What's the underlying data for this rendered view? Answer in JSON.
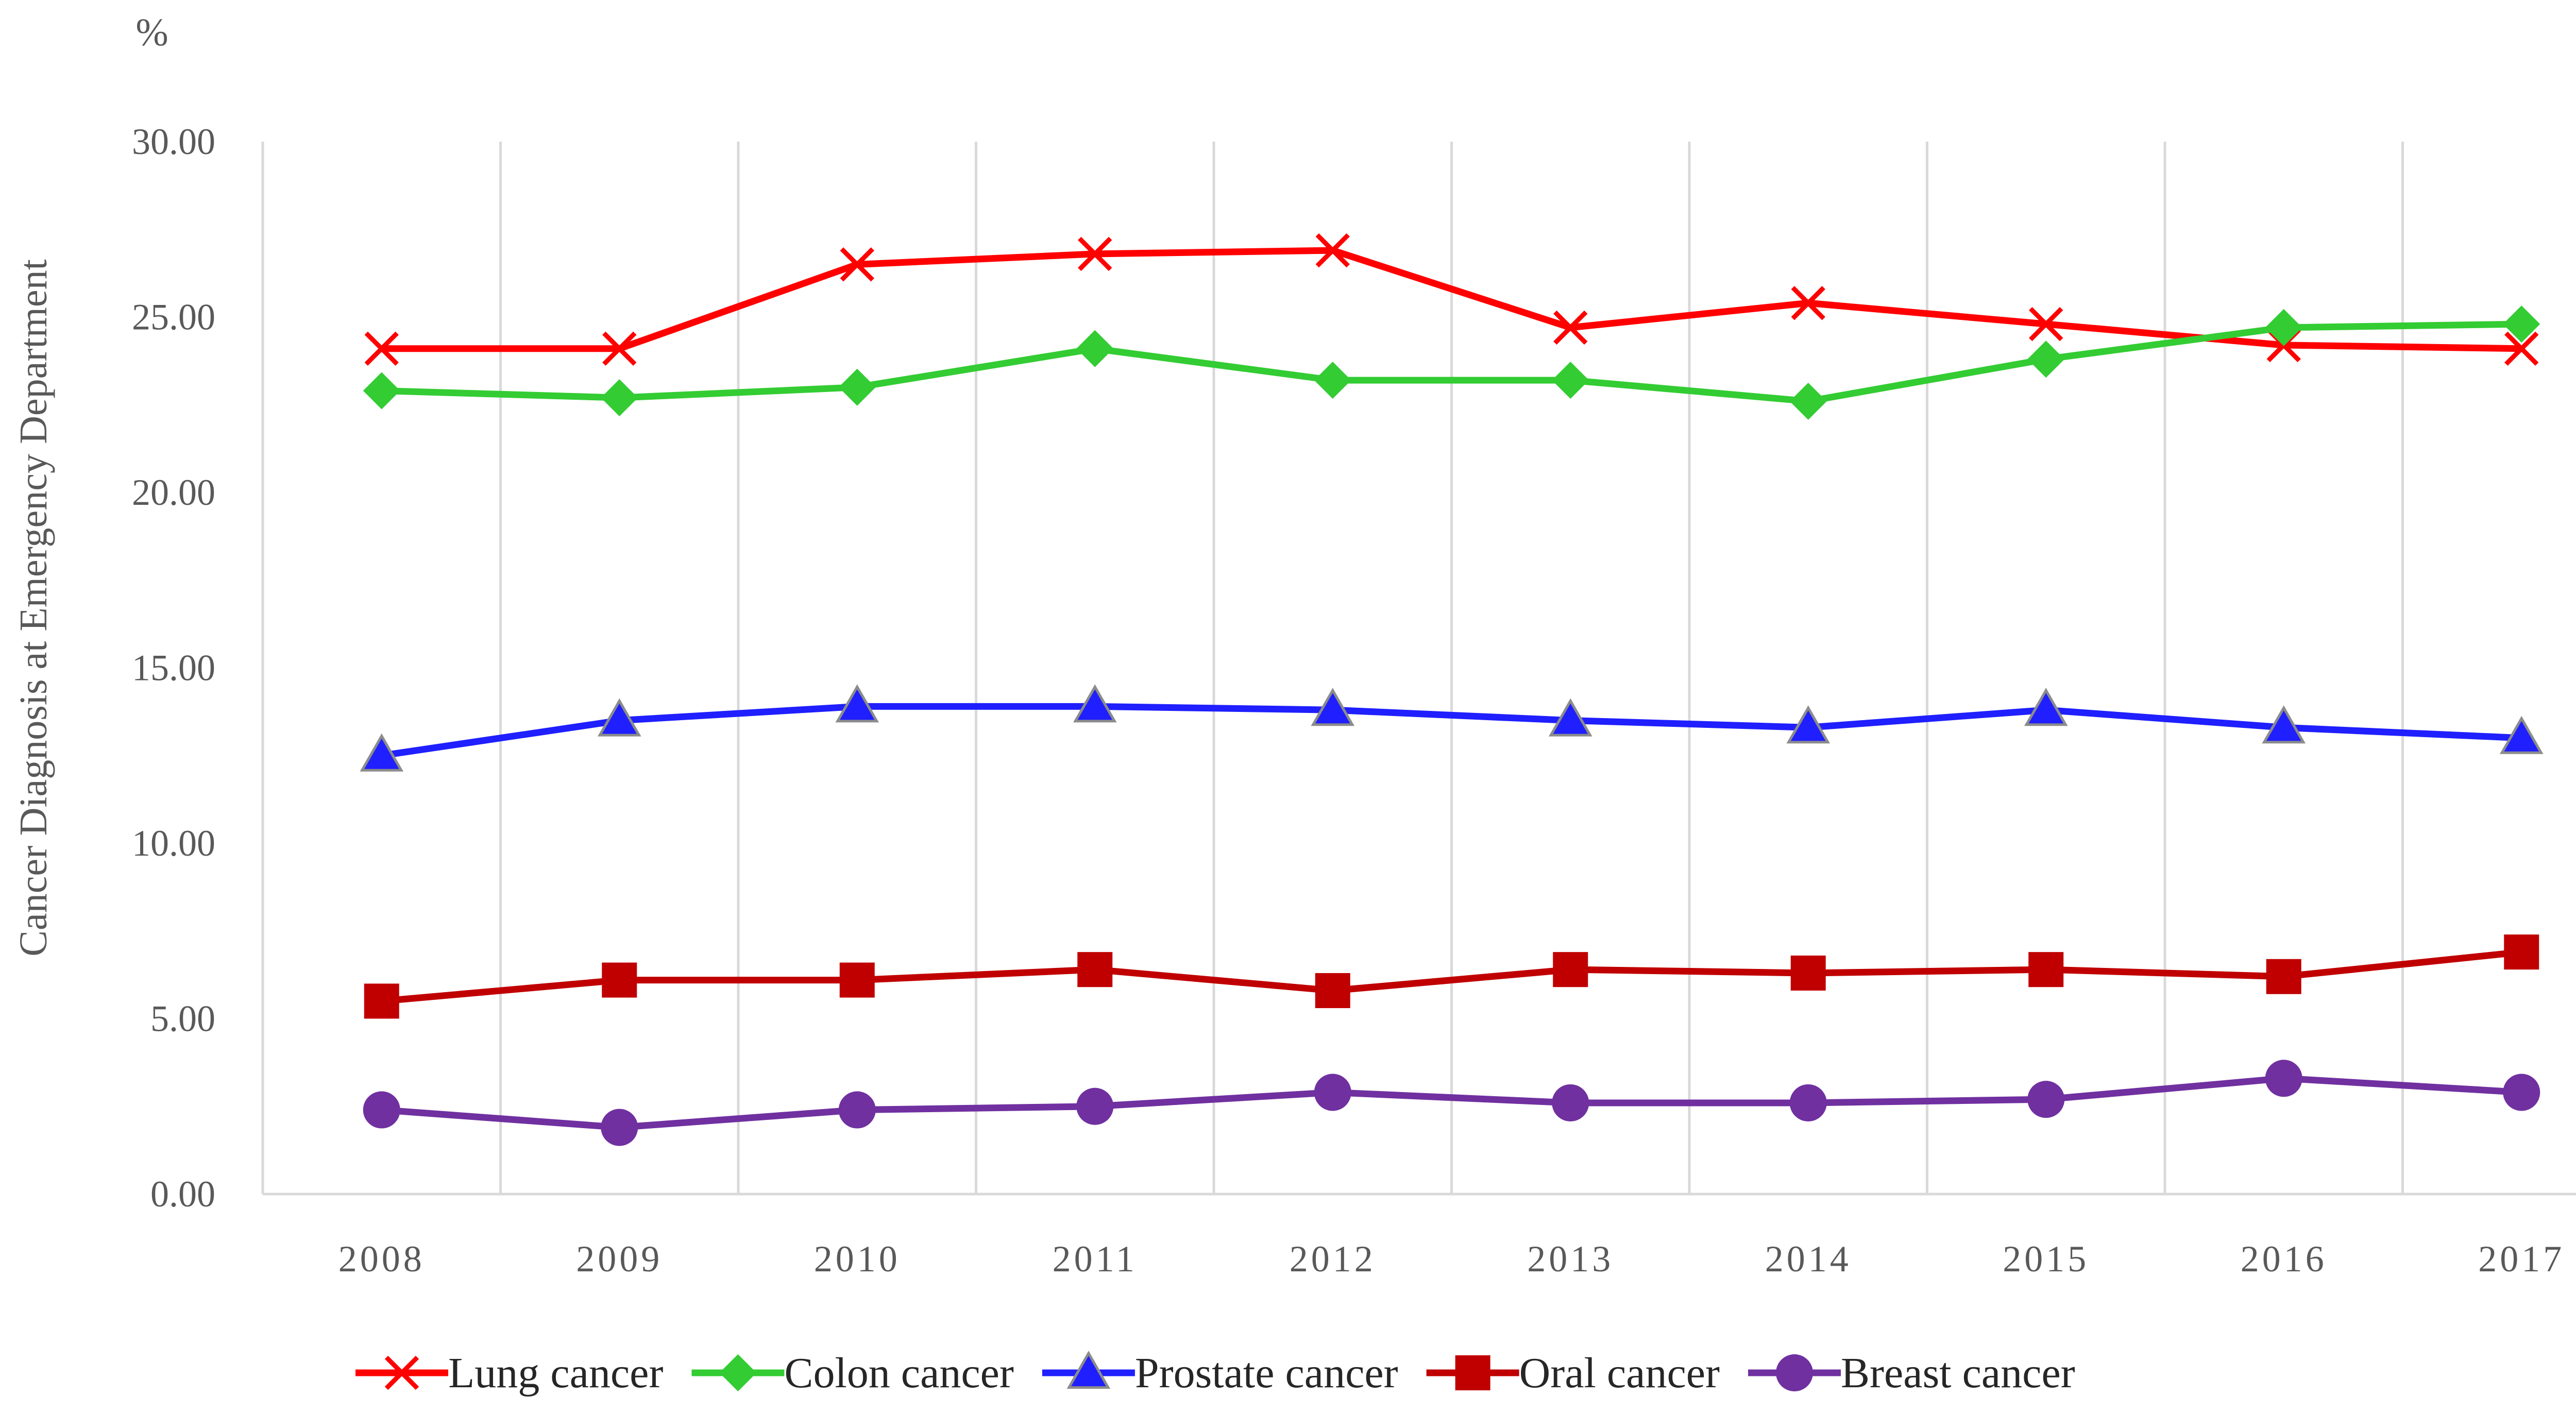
{
  "chart_data": {
    "type": "line",
    "title": "",
    "unit_label": "%",
    "ylabel": "Cancer Diagnosis at Emergency Department",
    "xlabel": "",
    "ylim": [
      0,
      30
    ],
    "y_ticks": [
      "0.00",
      "5.00",
      "10.00",
      "15.00",
      "20.00",
      "25.00",
      "30.00"
    ],
    "categories": [
      "2008",
      "2009",
      "2010",
      "2011",
      "2012",
      "2013",
      "2014",
      "2015",
      "2016",
      "2017"
    ],
    "grid": "vertical",
    "legend_position": "bottom",
    "series": [
      {
        "name": "Lung cancer",
        "color": "#ff0000",
        "marker": "x",
        "values": [
          24.1,
          24.1,
          26.5,
          26.8,
          26.9,
          24.7,
          25.4,
          24.8,
          24.2,
          24.1
        ]
      },
      {
        "name": "Colon cancer",
        "color": "#33cc33",
        "marker": "diamond",
        "values": [
          22.9,
          22.7,
          23.0,
          24.1,
          23.2,
          23.2,
          22.6,
          23.8,
          24.7,
          24.8
        ]
      },
      {
        "name": "Prostate cancer",
        "color": "#1f1fff",
        "marker": "triangle",
        "values": [
          12.5,
          13.5,
          13.9,
          13.9,
          13.8,
          13.5,
          13.3,
          13.8,
          13.3,
          13.0
        ]
      },
      {
        "name": "Oral cancer",
        "color": "#c00000",
        "marker": "square",
        "values": [
          5.5,
          6.1,
          6.1,
          6.4,
          5.8,
          6.4,
          6.3,
          6.4,
          6.2,
          6.9
        ]
      },
      {
        "name": "Breast cancer",
        "color": "#7030a0",
        "marker": "circle",
        "values": [
          2.4,
          1.9,
          2.4,
          2.5,
          2.9,
          2.6,
          2.6,
          2.7,
          3.3,
          2.9
        ]
      }
    ]
  }
}
